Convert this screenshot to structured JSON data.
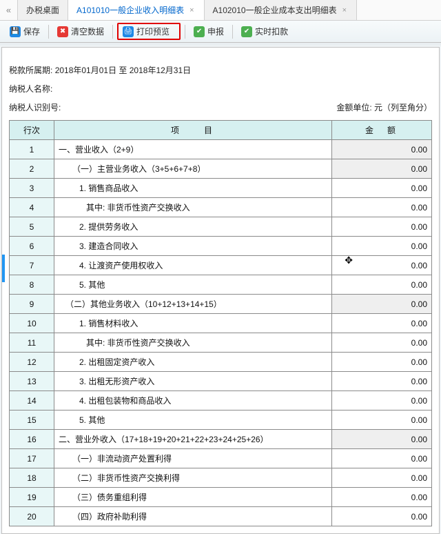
{
  "tabs": {
    "t0": "办税桌面",
    "t1": "A101010一般企业收入明细表",
    "t2": "A102010一般企业成本支出明细表"
  },
  "toolbar": {
    "save": "保存",
    "clear": "清空数据",
    "print": "打印预览",
    "declare": "申报",
    "deduct": "实时扣款"
  },
  "header": {
    "period_label": "税款所属期:",
    "period_value": "2018年01月01日 至 2018年12月31日",
    "payer_name_label": "纳税人名称:",
    "payer_name_value": "",
    "payer_id_label": "纳税人识别号:",
    "unit": "金额单位: 元（列至角分）",
    "col_row": "行次",
    "col_item": "项　　目",
    "col_amount": "金　额"
  },
  "rows": [
    {
      "n": "1",
      "item": "一、营业收入（2+9）",
      "ro": true,
      "indent": 0
    },
    {
      "n": "2",
      "item": "（一）主营业务收入（3+5+6+7+8）",
      "ro": true,
      "indent": 2
    },
    {
      "n": "3",
      "item": "1. 销售商品收入",
      "ro": false,
      "indent": 3
    },
    {
      "n": "4",
      "item": "其中: 非货币性资产交换收入",
      "ro": false,
      "indent": 4
    },
    {
      "n": "5",
      "item": "2. 提供劳务收入",
      "ro": false,
      "indent": 3
    },
    {
      "n": "6",
      "item": "3. 建造合同收入",
      "ro": false,
      "indent": 3
    },
    {
      "n": "7",
      "item": "4. 让渡资产使用权收入",
      "ro": false,
      "indent": 3
    },
    {
      "n": "8",
      "item": "5. 其他",
      "ro": false,
      "indent": 3
    },
    {
      "n": "9",
      "item": "（二）其他业务收入（10+12+13+14+15）",
      "ro": true,
      "indent": 1
    },
    {
      "n": "10",
      "item": "1. 销售材料收入",
      "ro": false,
      "indent": 3
    },
    {
      "n": "11",
      "item": "其中: 非货币性资产交换收入",
      "ro": false,
      "indent": 4
    },
    {
      "n": "12",
      "item": "2. 出租固定资产收入",
      "ro": false,
      "indent": 3
    },
    {
      "n": "13",
      "item": "3. 出租无形资产收入",
      "ro": false,
      "indent": 3
    },
    {
      "n": "14",
      "item": "4. 出租包装物和商品收入",
      "ro": false,
      "indent": 3
    },
    {
      "n": "15",
      "item": "5. 其他",
      "ro": false,
      "indent": 3
    },
    {
      "n": "16",
      "item": "二、营业外收入（17+18+19+20+21+22+23+24+25+26）",
      "ro": true,
      "indent": 0
    },
    {
      "n": "17",
      "item": "（一）非流动资产处置利得",
      "ro": false,
      "indent": 2
    },
    {
      "n": "18",
      "item": "（二）非货币性资产交换利得",
      "ro": false,
      "indent": 2
    },
    {
      "n": "19",
      "item": "（三）债务重组利得",
      "ro": false,
      "indent": 2
    },
    {
      "n": "20",
      "item": "（四）政府补助利得",
      "ro": false,
      "indent": 2
    }
  ],
  "amount_text": "0.00"
}
